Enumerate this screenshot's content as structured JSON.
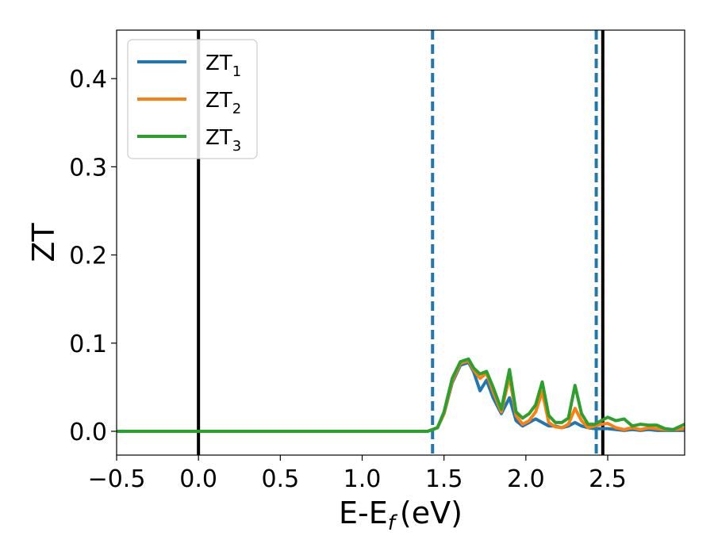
{
  "chart_data": {
    "type": "line",
    "title": "",
    "xlabel": "E-E",
    "xlabel_sub": "f",
    "xlabel_unit": "(eV)",
    "ylabel": "ZT",
    "xlim": [
      -0.5,
      2.97
    ],
    "ylim": [
      -0.027,
      0.455
    ],
    "xticks": [
      -0.5,
      0.0,
      0.5,
      1.0,
      1.5,
      2.0,
      2.5
    ],
    "xtick_labels": [
      "−0.5",
      "0.0",
      "0.5",
      "1.0",
      "1.5",
      "2.0",
      "2.5"
    ],
    "yticks": [
      0.0,
      0.1,
      0.2,
      0.3,
      0.4
    ],
    "ytick_labels": [
      "0.0",
      "0.1",
      "0.2",
      "0.3",
      "0.4"
    ],
    "grid": false,
    "legend_position": "top-left",
    "vlines": [
      {
        "x": 0.0,
        "style": "solid",
        "color": "#000000"
      },
      {
        "x": 2.47,
        "style": "solid",
        "color": "#000000"
      },
      {
        "x": 1.43,
        "style": "dashed",
        "color": "#1f77b4"
      },
      {
        "x": 2.43,
        "style": "dashed",
        "color": "#1f77b4"
      }
    ],
    "series": [
      {
        "name": "ZT",
        "subscript": "1",
        "color": "#1f77b4",
        "x": [
          -0.5,
          1.4,
          1.46,
          1.5,
          1.55,
          1.6,
          1.65,
          1.68,
          1.72,
          1.76,
          1.8,
          1.85,
          1.9,
          1.94,
          1.98,
          2.02,
          2.06,
          2.1,
          2.14,
          2.18,
          2.22,
          2.26,
          2.3,
          2.34,
          2.38,
          2.42,
          2.46,
          2.5,
          2.55,
          2.6,
          2.65,
          2.7,
          2.75,
          2.8,
          2.85,
          2.9,
          2.97
        ],
        "y": [
          0.0,
          0.0,
          0.004,
          0.02,
          0.055,
          0.075,
          0.078,
          0.068,
          0.046,
          0.058,
          0.038,
          0.02,
          0.038,
          0.012,
          0.006,
          0.01,
          0.014,
          0.01,
          0.006,
          0.006,
          0.004,
          0.006,
          0.01,
          0.006,
          0.004,
          0.003,
          0.003,
          0.003,
          0.002,
          0.001,
          0.002,
          0.001,
          0.002,
          0.001,
          0.001,
          0.001,
          0.001
        ]
      },
      {
        "name": "ZT",
        "subscript": "2",
        "color": "#ff7f0e",
        "x": [
          -0.5,
          1.4,
          1.46,
          1.5,
          1.55,
          1.6,
          1.65,
          1.68,
          1.72,
          1.76,
          1.8,
          1.85,
          1.9,
          1.94,
          1.98,
          2.02,
          2.06,
          2.1,
          2.14,
          2.18,
          2.22,
          2.26,
          2.3,
          2.34,
          2.38,
          2.42,
          2.46,
          2.5,
          2.55,
          2.6,
          2.65,
          2.7,
          2.75,
          2.8,
          2.85,
          2.9,
          2.97
        ],
        "y": [
          0.0,
          0.0,
          0.004,
          0.02,
          0.057,
          0.077,
          0.08,
          0.07,
          0.06,
          0.066,
          0.045,
          0.022,
          0.062,
          0.018,
          0.008,
          0.012,
          0.022,
          0.045,
          0.01,
          0.005,
          0.004,
          0.008,
          0.026,
          0.012,
          0.004,
          0.006,
          0.008,
          0.009,
          0.004,
          0.002,
          0.004,
          0.002,
          0.004,
          0.003,
          0.002,
          0.002,
          0.003
        ]
      },
      {
        "name": "ZT",
        "subscript": "3",
        "color": "#2ca02c",
        "x": [
          -0.5,
          1.4,
          1.46,
          1.5,
          1.55,
          1.6,
          1.65,
          1.68,
          1.72,
          1.76,
          1.8,
          1.85,
          1.9,
          1.94,
          1.98,
          2.02,
          2.06,
          2.1,
          2.14,
          2.18,
          2.22,
          2.26,
          2.3,
          2.34,
          2.38,
          2.42,
          2.46,
          2.5,
          2.55,
          2.6,
          2.65,
          2.7,
          2.75,
          2.8,
          2.85,
          2.9,
          2.97
        ],
        "y": [
          0.0,
          0.0,
          0.004,
          0.022,
          0.06,
          0.079,
          0.082,
          0.072,
          0.065,
          0.068,
          0.05,
          0.025,
          0.07,
          0.022,
          0.015,
          0.02,
          0.03,
          0.056,
          0.018,
          0.01,
          0.01,
          0.015,
          0.052,
          0.02,
          0.008,
          0.008,
          0.012,
          0.016,
          0.012,
          0.014,
          0.006,
          0.008,
          0.007,
          0.007,
          0.003,
          0.002,
          0.008
        ]
      }
    ]
  }
}
